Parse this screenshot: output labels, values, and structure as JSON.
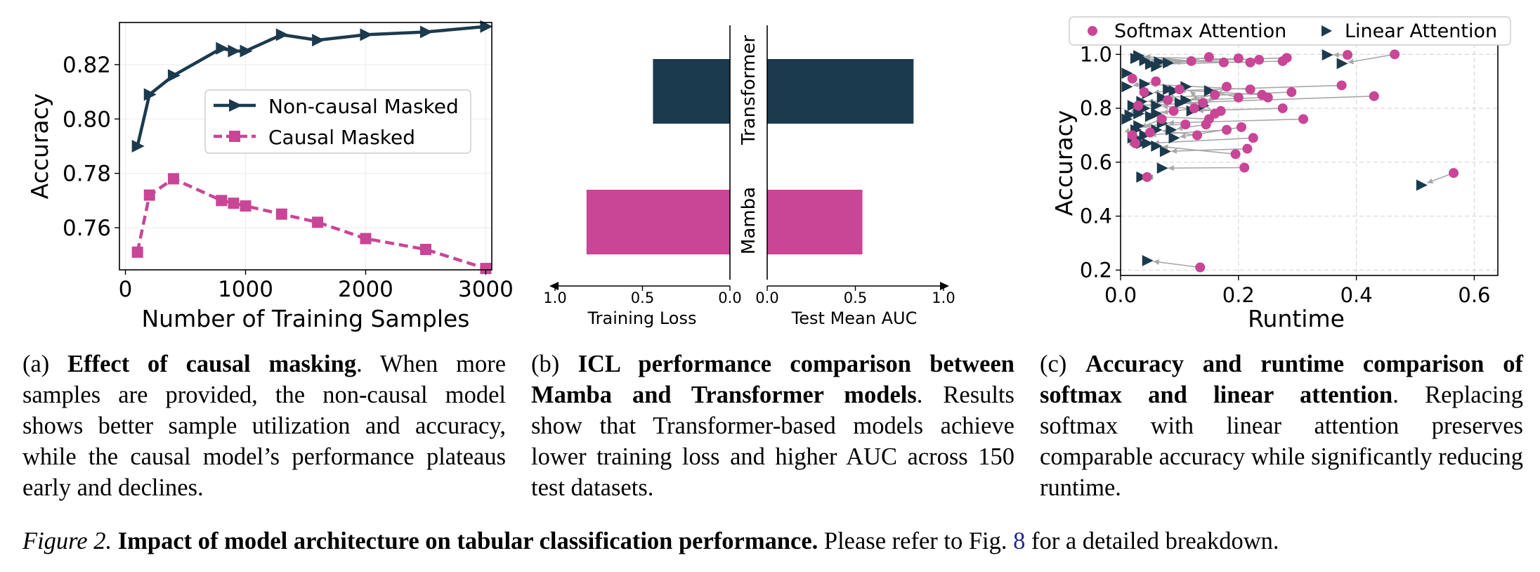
{
  "colors": {
    "navy": "#1c3a4e",
    "pink": "#c94596",
    "grid": "#d8d8d8",
    "arrow": "#a8a8a8"
  },
  "chart_data": [
    {
      "type": "line",
      "xlabel": "Number of Training Samples",
      "ylabel": "Accuracy",
      "xlim": [
        -50,
        3050
      ],
      "ylim": [
        0.7445,
        0.8355
      ],
      "xticks": [
        "0",
        "1000",
        "2000",
        "3000"
      ],
      "yticks": [
        "0.76",
        "0.78",
        "0.80",
        "0.82"
      ],
      "grid": true,
      "legend": "center-right",
      "series": [
        {
          "name": "Non-causal Masked",
          "marker": "triangle-right",
          "linestyle": "solid",
          "x": [
            100,
            200,
            400,
            800,
            900,
            1000,
            1300,
            1600,
            2000,
            2500,
            3000
          ],
          "y": [
            0.79,
            0.809,
            0.816,
            0.826,
            0.825,
            0.825,
            0.831,
            0.829,
            0.831,
            0.832,
            0.834
          ]
        },
        {
          "name": "Causal Masked",
          "marker": "square",
          "linestyle": "dashed",
          "x": [
            100,
            200,
            400,
            800,
            900,
            1000,
            1300,
            1600,
            2000,
            2500,
            3000
          ],
          "y": [
            0.751,
            0.772,
            0.778,
            0.77,
            0.769,
            0.768,
            0.765,
            0.762,
            0.756,
            0.752,
            0.745
          ]
        }
      ]
    },
    {
      "type": "bar",
      "orientation": "horizontal",
      "categories": [
        "Transformer",
        "Mamba"
      ],
      "left_axis": {
        "label": "Training Loss",
        "xlim": [
          1.0,
          0.0
        ],
        "ticks": [
          "1.0",
          "0.5",
          "0.0"
        ]
      },
      "right_axis": {
        "label": "Test Mean AUC",
        "xlim": [
          0.0,
          1.0
        ],
        "ticks": [
          "0.0",
          "0.5",
          "1.0"
        ]
      },
      "series": [
        {
          "metric": "Training Loss",
          "values": [
            0.44,
            0.82
          ]
        },
        {
          "metric": "Test Mean AUC",
          "values": [
            0.83,
            0.54
          ]
        }
      ]
    },
    {
      "type": "scatter",
      "xlabel": "Runtime",
      "ylabel": "Accuracy",
      "xlim": [
        0.0,
        0.64
      ],
      "ylim": [
        0.18,
        1.04
      ],
      "xticks": [
        "0.0",
        "0.2",
        "0.4",
        "0.6"
      ],
      "yticks": [
        "0.2",
        "0.4",
        "0.6",
        "0.8",
        "1.0"
      ],
      "grid": true,
      "legend": "top",
      "legend_entries": [
        "Softmax Attention",
        "Linear Attention"
      ],
      "pairs": [
        {
          "softmax": [
            0.465,
            1.0
          ],
          "linear": [
            0.375,
            0.966
          ]
        },
        {
          "softmax": [
            0.385,
            0.998
          ],
          "linear": [
            0.35,
            0.998
          ]
        },
        {
          "softmax": [
            0.282,
            0.987
          ],
          "linear": [
            0.065,
            0.972
          ]
        },
        {
          "softmax": [
            0.275,
            0.975
          ],
          "linear": [
            0.05,
            0.963
          ]
        },
        {
          "softmax": [
            0.235,
            0.98
          ],
          "linear": [
            0.03,
            0.99
          ]
        },
        {
          "softmax": [
            0.22,
            0.97
          ],
          "linear": [
            0.04,
            0.977
          ]
        },
        {
          "softmax": [
            0.2,
            0.985
          ],
          "linear": [
            0.08,
            0.968
          ]
        },
        {
          "softmax": [
            0.175,
            0.97
          ],
          "linear": [
            0.025,
            0.985
          ]
        },
        {
          "softmax": [
            0.15,
            0.99
          ],
          "linear": [
            0.06,
            0.955
          ]
        },
        {
          "softmax": [
            0.12,
            0.975
          ],
          "linear": [
            0.03,
            0.995
          ]
        },
        {
          "softmax": [
            0.43,
            0.845
          ],
          "linear": [
            0.1,
            0.82
          ]
        },
        {
          "softmax": [
            0.375,
            0.885
          ],
          "linear": [
            0.09,
            0.865
          ]
        },
        {
          "softmax": [
            0.29,
            0.86
          ],
          "linear": [
            0.07,
            0.84
          ]
        },
        {
          "softmax": [
            0.275,
            0.8
          ],
          "linear": [
            0.12,
            0.79
          ]
        },
        {
          "softmax": [
            0.31,
            0.76
          ],
          "linear": [
            0.07,
            0.745
          ]
        },
        {
          "softmax": [
            0.25,
            0.84
          ],
          "linear": [
            0.035,
            0.825
          ]
        },
        {
          "softmax": [
            0.24,
            0.85
          ],
          "linear": [
            0.08,
            0.87
          ]
        },
        {
          "softmax": [
            0.22,
            0.87
          ],
          "linear": [
            0.04,
            0.89
          ]
        },
        {
          "softmax": [
            0.2,
            0.84
          ],
          "linear": [
            0.15,
            0.865
          ]
        },
        {
          "softmax": [
            0.18,
            0.88
          ],
          "linear": [
            0.14,
            0.81
          ]
        },
        {
          "softmax": [
            0.17,
            0.79
          ],
          "linear": [
            0.06,
            0.81
          ]
        },
        {
          "softmax": [
            0.16,
            0.85
          ],
          "linear": [
            0.11,
            0.83
          ]
        },
        {
          "softmax": [
            0.15,
            0.76
          ],
          "linear": [
            0.05,
            0.77
          ]
        },
        {
          "softmax": [
            0.14,
            0.82
          ],
          "linear": [
            0.02,
            0.81
          ]
        },
        {
          "softmax": [
            0.125,
            0.8
          ],
          "linear": [
            0.06,
            0.78
          ]
        },
        {
          "softmax": [
            0.11,
            0.74
          ],
          "linear": [
            0.03,
            0.735
          ]
        },
        {
          "softmax": [
            0.1,
            0.87
          ],
          "linear": [
            0.045,
            0.855
          ]
        },
        {
          "softmax": [
            0.09,
            0.79
          ],
          "linear": [
            0.015,
            0.775
          ]
        },
        {
          "softmax": [
            0.08,
            0.83
          ],
          "linear": [
            0.04,
            0.8
          ]
        },
        {
          "softmax": [
            0.07,
            0.76
          ],
          "linear": [
            0.025,
            0.72
          ]
        },
        {
          "softmax": [
            0.06,
            0.9
          ],
          "linear": [
            0.01,
            0.88
          ]
        },
        {
          "softmax": [
            0.05,
            0.71
          ],
          "linear": [
            0.02,
            0.69
          ]
        },
        {
          "softmax": [
            0.04,
            0.86
          ],
          "linear": [
            0.03,
            0.78
          ]
        },
        {
          "softmax": [
            0.03,
            0.81
          ],
          "linear": [
            0.01,
            0.76
          ]
        },
        {
          "softmax": [
            0.02,
            0.91
          ],
          "linear": [
            0.01,
            0.93
          ]
        },
        {
          "softmax": [
            0.18,
            0.72
          ],
          "linear": [
            0.04,
            0.7
          ]
        },
        {
          "softmax": [
            0.205,
            0.73
          ],
          "linear": [
            0.09,
            0.69
          ]
        },
        {
          "softmax": [
            0.225,
            0.69
          ],
          "linear": [
            0.045,
            0.67
          ]
        },
        {
          "softmax": [
            0.215,
            0.65
          ],
          "linear": [
            0.075,
            0.64
          ]
        },
        {
          "softmax": [
            0.195,
            0.63
          ],
          "linear": [
            0.06,
            0.66
          ]
        },
        {
          "softmax": [
            0.02,
            0.7
          ],
          "linear": [
            0.025,
            0.69
          ]
        },
        {
          "softmax": [
            0.025,
            0.67
          ],
          "linear": [
            0.035,
            0.67
          ]
        },
        {
          "softmax": [
            0.21,
            0.58
          ],
          "linear": [
            0.07,
            0.578
          ]
        },
        {
          "softmax": [
            0.045,
            0.545
          ],
          "linear": [
            0.035,
            0.545
          ]
        },
        {
          "softmax": [
            0.565,
            0.56
          ],
          "linear": [
            0.51,
            0.515
          ]
        },
        {
          "softmax": [
            0.135,
            0.21
          ],
          "linear": [
            0.045,
            0.235
          ]
        },
        {
          "softmax": [
            0.16,
            0.78
          ],
          "linear": [
            0.11,
            0.88
          ]
        },
        {
          "softmax": [
            0.145,
            0.74
          ],
          "linear": [
            0.085,
            0.72
          ]
        },
        {
          "softmax": [
            0.13,
            0.7
          ],
          "linear": [
            0.06,
            0.72
          ]
        }
      ]
    }
  ],
  "captions": {
    "a": {
      "prefix": "(a) ",
      "bold": "Effect of causal masking",
      "text": ". When more samples are provided, the non-causal model shows better sample utilization and accuracy, while the causal model’s performance plateaus early and declines."
    },
    "b": {
      "prefix": "(b) ",
      "bold": "ICL performance comparison between Mamba and Transformer models",
      "text": ". Results show that Transformer-based models achieve lower training loss and higher AUC across 150 test datasets."
    },
    "c": {
      "prefix": "(c) ",
      "bold": "Accuracy and runtime comparison of softmax and linear attention",
      "text": ". Replacing softmax with linear attention preserves comparable accuracy while significantly reducing runtime."
    }
  },
  "figure_caption": {
    "label": "Figure 2.",
    "bold": "Impact of model architecture on tabular classification performance.",
    "text_before_ref": "Please refer to Fig.",
    "ref": "8",
    "text_after_ref": "for a detailed breakdown."
  }
}
